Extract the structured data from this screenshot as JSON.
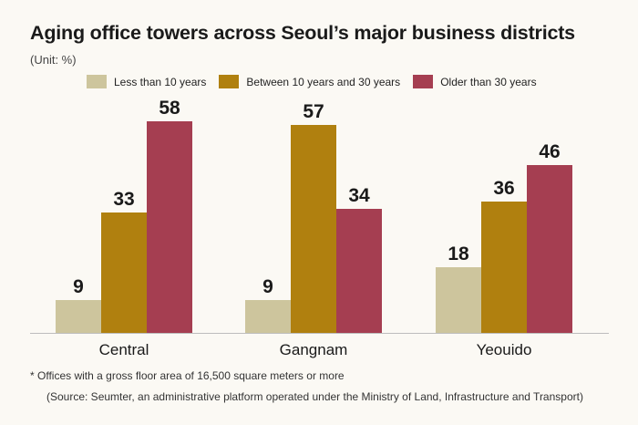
{
  "title": "Aging office towers across Seoul’s major business districts",
  "unit_label": "(Unit: %)",
  "footnote": "* Offices with a gross floor area of 16,500 square meters or more",
  "source": "(Source: Seumter, an administrative platform operated under the Ministry of Land, Infrastructure and Transport)",
  "colors": {
    "less_than_10": "#cdc59d",
    "between_10_30": "#b0800f",
    "older_than_30": "#a53e51",
    "baseline": "#bdbdbd"
  },
  "chart_data": {
    "type": "bar",
    "title": "Aging office towers across Seoul’s major business districts",
    "ylabel": "",
    "xlabel": "",
    "categories": [
      "Central",
      "Gangnam",
      "Yeouido"
    ],
    "series": [
      {
        "name": "Less than 10 years",
        "color": "#cdc59d",
        "values": [
          9,
          9,
          18
        ]
      },
      {
        "name": "Between 10 years and 30 years",
        "color": "#b0800f",
        "values": [
          33,
          57,
          36
        ]
      },
      {
        "name": "Older than 30 years",
        "color": "#a53e51",
        "values": [
          58,
          34,
          46
        ]
      }
    ],
    "ylim": [
      0,
      60
    ],
    "grid": false,
    "legend": "top",
    "data_labels": true
  }
}
